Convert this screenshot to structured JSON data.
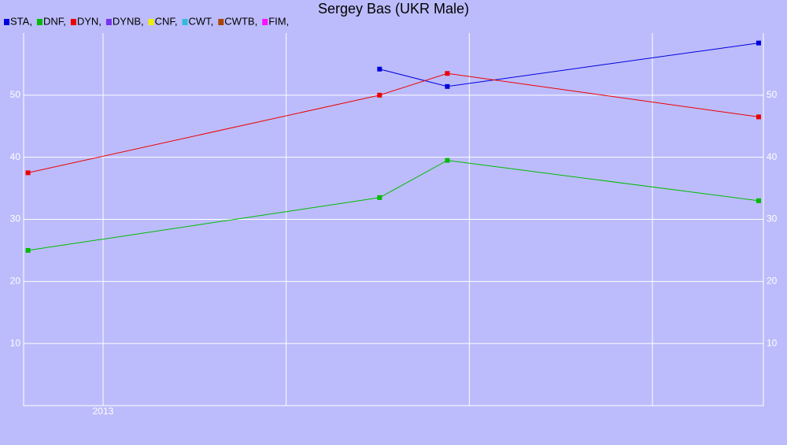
{
  "chart_data": {
    "type": "line",
    "title": "Sergey Bas (UKR Male)",
    "x": [
      2012.59,
      2014.51,
      2014.88,
      2016.58
    ],
    "xlim": [
      2012.566,
      2016.606
    ],
    "xticks": [
      2013,
      {
        "value": 2014,
        "label": null
      },
      {
        "value": 2015,
        "label": null
      },
      {
        "value": 2016,
        "label": null
      }
    ],
    "ylim": [
      0,
      60
    ],
    "yticks": [
      10,
      20,
      30,
      40,
      50
    ],
    "grid": true,
    "legend": "top-left",
    "series": [
      {
        "name": "STA,",
        "color": "#0000dd",
        "values": [
          null,
          54.2,
          51.4,
          58.4
        ]
      },
      {
        "name": "DNF,",
        "color": "#00bb00",
        "values": [
          25,
          33.5,
          39.5,
          33
        ]
      },
      {
        "name": "DYN,",
        "color": "#ee0000",
        "values": [
          37.5,
          50,
          53.5,
          46.5
        ]
      },
      {
        "name": "DYNB,",
        "color": "#7733ee",
        "values": [
          null,
          null,
          null,
          null
        ]
      },
      {
        "name": "CNF,",
        "color": "#eeee00",
        "values": [
          null,
          null,
          null,
          null
        ]
      },
      {
        "name": "CWT,",
        "color": "#33bbdd",
        "values": [
          null,
          null,
          null,
          null
        ]
      },
      {
        "name": "CWTB,",
        "color": "#aa4400",
        "values": [
          null,
          null,
          null,
          null
        ]
      },
      {
        "name": "FIM,",
        "color": "#ff11ff",
        "values": [
          null,
          null,
          null,
          null
        ]
      }
    ]
  }
}
